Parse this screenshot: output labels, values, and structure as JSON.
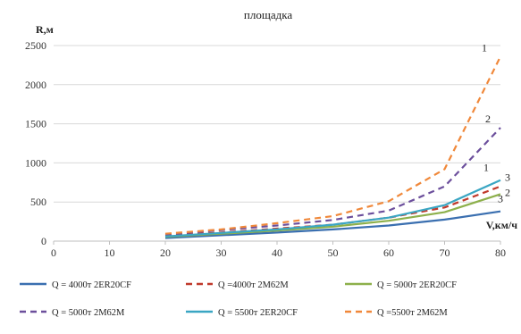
{
  "chart_data": {
    "type": "line",
    "title": "площадка",
    "xlabel": "V,км/ч",
    "ylabel": "R,м",
    "x_ticks": [
      "0",
      "10",
      "20",
      "30",
      "40",
      "50",
      "60",
      "70",
      "80"
    ],
    "y_ticks": [
      "0",
      "500",
      "1000",
      "1500",
      "2000",
      "2500"
    ],
    "xlim": [
      0,
      80
    ],
    "ylim": [
      0,
      2500
    ],
    "grid": "horizontal",
    "legend_position": "bottom",
    "x": [
      20,
      30,
      40,
      50,
      60,
      70,
      80
    ],
    "series": [
      {
        "name": "Q = 4000т 2ER20CF",
        "color": "#3A6FB0",
        "dash": "solid",
        "values": [
          40,
          75,
          110,
          150,
          200,
          275,
          380
        ]
      },
      {
        "name": "Q =4000т 2М62М",
        "color": "#C0392B",
        "dash": "dashed",
        "values": [
          70,
          110,
          160,
          210,
          300,
          430,
          700
        ]
      },
      {
        "name": "Q = 5000т 2ER20CF",
        "color": "#8DB04B",
        "dash": "solid",
        "values": [
          55,
          95,
          135,
          185,
          260,
          370,
          600
        ]
      },
      {
        "name": "Q = 5000т 2М62М",
        "color": "#6C4F9C",
        "dash": "dashed",
        "values": [
          85,
          140,
          200,
          270,
          390,
          700,
          1450
        ]
      },
      {
        "name": "Q = 5500т 2ER20CF",
        "color": "#3AA6C3",
        "dash": "solid",
        "values": [
          60,
          105,
          150,
          210,
          300,
          460,
          780
        ]
      },
      {
        "name": "Q =5500т 2М62М",
        "color": "#F0883A",
        "dash": "dashed",
        "values": [
          95,
          150,
          230,
          320,
          510,
          920,
          2360
        ]
      }
    ],
    "annotations": [
      {
        "text": "1",
        "series": 5,
        "x": 80
      },
      {
        "text": "2",
        "series": 3,
        "x": 80
      },
      {
        "text": "1",
        "series": 4,
        "x": 80
      },
      {
        "text": "3",
        "series": 1,
        "x": 80
      },
      {
        "text": "2",
        "series": 2,
        "x": 80
      },
      {
        "text": "3",
        "series": 0,
        "x": 80
      }
    ]
  }
}
